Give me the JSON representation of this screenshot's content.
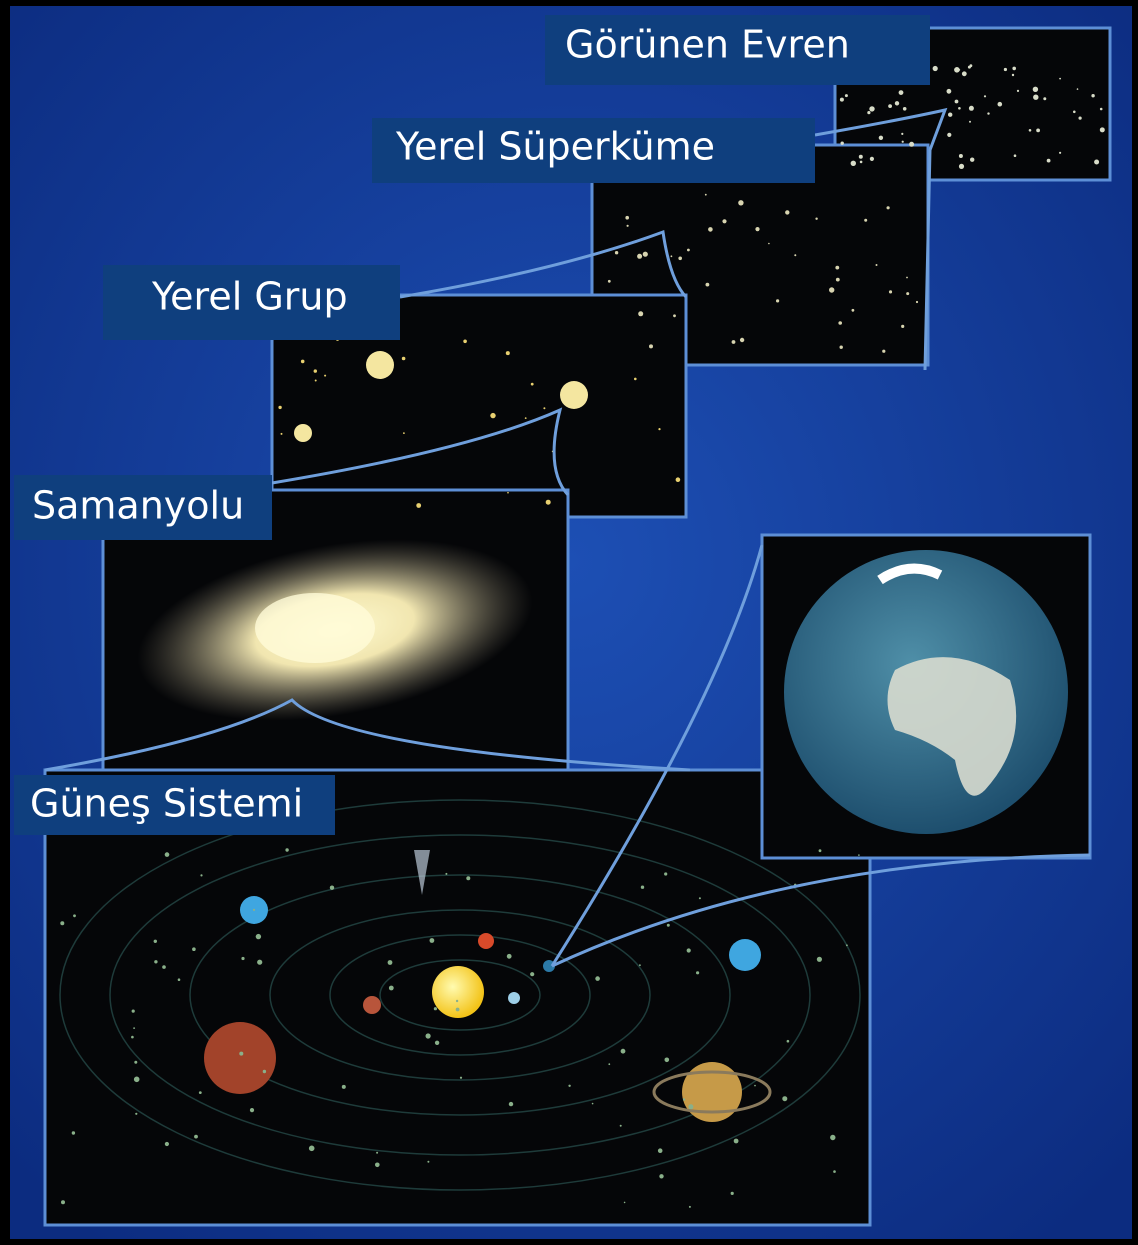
{
  "nodes": [
    {
      "label": "Görünen Evren"
    },
    {
      "label": "Yerel Süperküme"
    },
    {
      "label": "Yerel Grup"
    },
    {
      "label": "Samanyolu"
    },
    {
      "label": "Güneş Sistemi"
    }
  ]
}
